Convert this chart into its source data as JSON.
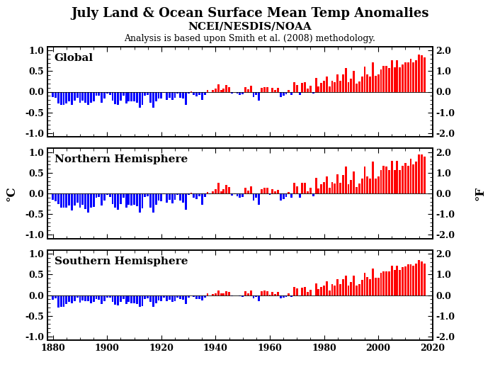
{
  "title_line1": "July Land & Ocean Surface Mean Temp Anomalies",
  "title_line2": "NCEI/NESDIS/NOAA",
  "title_line3": "Analysis is based upon Smith et al. (2008) methodology.",
  "ylabel_left": "°C",
  "ylabel_right": "°F",
  "panel_labels": [
    "Global",
    "Northern Hemisphere",
    "Southern Hemisphere"
  ],
  "years": [
    1880,
    1881,
    1882,
    1883,
    1884,
    1885,
    1886,
    1887,
    1888,
    1889,
    1890,
    1891,
    1892,
    1893,
    1894,
    1895,
    1896,
    1897,
    1898,
    1899,
    1900,
    1901,
    1902,
    1903,
    1904,
    1905,
    1906,
    1907,
    1908,
    1909,
    1910,
    1911,
    1912,
    1913,
    1914,
    1915,
    1916,
    1917,
    1918,
    1919,
    1920,
    1921,
    1922,
    1923,
    1924,
    1925,
    1926,
    1927,
    1928,
    1929,
    1930,
    1931,
    1932,
    1933,
    1934,
    1935,
    1936,
    1937,
    1938,
    1939,
    1940,
    1941,
    1942,
    1943,
    1944,
    1945,
    1946,
    1947,
    1948,
    1949,
    1950,
    1951,
    1952,
    1953,
    1954,
    1955,
    1956,
    1957,
    1958,
    1959,
    1960,
    1961,
    1962,
    1963,
    1964,
    1965,
    1966,
    1967,
    1968,
    1969,
    1970,
    1971,
    1972,
    1973,
    1974,
    1975,
    1976,
    1977,
    1978,
    1979,
    1980,
    1981,
    1982,
    1983,
    1984,
    1985,
    1986,
    1987,
    1988,
    1989,
    1990,
    1991,
    1992,
    1993,
    1994,
    1995,
    1996,
    1997,
    1998,
    1999,
    2000,
    2001,
    2002,
    2003,
    2004,
    2005,
    2006,
    2007,
    2008,
    2009,
    2010,
    2011,
    2012,
    2013,
    2014,
    2015,
    2016,
    2017
  ],
  "global": [
    -0.13,
    -0.14,
    -0.28,
    -0.31,
    -0.31,
    -0.28,
    -0.23,
    -0.31,
    -0.22,
    -0.14,
    -0.26,
    -0.21,
    -0.27,
    -0.31,
    -0.27,
    -0.24,
    -0.1,
    -0.09,
    -0.26,
    -0.16,
    -0.05,
    -0.07,
    -0.21,
    -0.3,
    -0.32,
    -0.21,
    -0.1,
    -0.28,
    -0.23,
    -0.24,
    -0.24,
    -0.26,
    -0.38,
    -0.32,
    -0.09,
    -0.07,
    -0.26,
    -0.38,
    -0.23,
    -0.16,
    -0.17,
    -0.03,
    -0.19,
    -0.14,
    -0.2,
    -0.15,
    -0.05,
    -0.14,
    -0.17,
    -0.31,
    -0.05,
    0.01,
    -0.08,
    -0.11,
    -0.08,
    -0.2,
    -0.07,
    0.04,
    -0.01,
    0.04,
    0.08,
    0.18,
    0.05,
    0.07,
    0.16,
    0.12,
    -0.04,
    -0.01,
    -0.04,
    -0.07,
    -0.06,
    0.12,
    0.06,
    0.14,
    -0.13,
    -0.08,
    -0.22,
    0.1,
    0.12,
    0.12,
    -0.01,
    0.1,
    0.05,
    0.09,
    -0.13,
    -0.1,
    -0.06,
    0.04,
    -0.07,
    0.23,
    0.17,
    -0.07,
    0.22,
    0.23,
    0.07,
    0.14,
    -0.04,
    0.34,
    0.13,
    0.21,
    0.26,
    0.37,
    0.13,
    0.27,
    0.24,
    0.43,
    0.26,
    0.42,
    0.57,
    0.23,
    0.32,
    0.51,
    0.2,
    0.25,
    0.37,
    0.61,
    0.43,
    0.37,
    0.72,
    0.39,
    0.43,
    0.55,
    0.63,
    0.62,
    0.57,
    0.76,
    0.59,
    0.76,
    0.59,
    0.67,
    0.72,
    0.71,
    0.8,
    0.71,
    0.77,
    0.9,
    0.88,
    0.83
  ],
  "northern": [
    -0.16,
    -0.19,
    -0.26,
    -0.34,
    -0.34,
    -0.35,
    -0.3,
    -0.42,
    -0.3,
    -0.22,
    -0.34,
    -0.28,
    -0.38,
    -0.47,
    -0.34,
    -0.32,
    -0.11,
    -0.08,
    -0.3,
    -0.17,
    -0.04,
    -0.08,
    -0.25,
    -0.35,
    -0.4,
    -0.26,
    -0.1,
    -0.35,
    -0.28,
    -0.29,
    -0.28,
    -0.31,
    -0.47,
    -0.37,
    -0.08,
    -0.07,
    -0.34,
    -0.47,
    -0.27,
    -0.18,
    -0.19,
    -0.01,
    -0.22,
    -0.16,
    -0.24,
    -0.16,
    -0.03,
    -0.18,
    -0.22,
    -0.39,
    -0.04,
    0.02,
    -0.11,
    -0.13,
    -0.07,
    -0.27,
    -0.08,
    0.04,
    -0.01,
    0.05,
    0.11,
    0.25,
    0.06,
    0.1,
    0.21,
    0.15,
    -0.06,
    -0.02,
    -0.07,
    -0.11,
    -0.08,
    0.13,
    0.07,
    0.17,
    -0.18,
    -0.11,
    -0.28,
    0.11,
    0.13,
    0.13,
    -0.03,
    0.11,
    0.06,
    0.09,
    -0.18,
    -0.14,
    -0.09,
    0.03,
    -0.1,
    0.26,
    0.18,
    -0.11,
    0.25,
    0.26,
    0.06,
    0.14,
    -0.07,
    0.38,
    0.12,
    0.22,
    0.27,
    0.41,
    0.13,
    0.28,
    0.24,
    0.47,
    0.25,
    0.45,
    0.65,
    0.22,
    0.33,
    0.54,
    0.16,
    0.24,
    0.37,
    0.66,
    0.42,
    0.36,
    0.78,
    0.36,
    0.42,
    0.56,
    0.67,
    0.65,
    0.57,
    0.8,
    0.57,
    0.8,
    0.57,
    0.67,
    0.74,
    0.68,
    0.84,
    0.7,
    0.78,
    0.95,
    0.94,
    0.9
  ],
  "southern": [
    -0.11,
    -0.08,
    -0.3,
    -0.28,
    -0.28,
    -0.21,
    -0.16,
    -0.19,
    -0.14,
    -0.06,
    -0.18,
    -0.13,
    -0.15,
    -0.15,
    -0.2,
    -0.17,
    -0.1,
    -0.11,
    -0.22,
    -0.14,
    -0.06,
    -0.06,
    -0.17,
    -0.24,
    -0.25,
    -0.16,
    -0.1,
    -0.21,
    -0.17,
    -0.19,
    -0.2,
    -0.21,
    -0.29,
    -0.27,
    -0.1,
    -0.08,
    -0.17,
    -0.29,
    -0.19,
    -0.13,
    -0.15,
    -0.06,
    -0.15,
    -0.12,
    -0.16,
    -0.14,
    -0.06,
    -0.1,
    -0.12,
    -0.22,
    -0.06,
    -0.01,
    -0.05,
    -0.09,
    -0.09,
    -0.13,
    -0.06,
    0.05,
    -0.01,
    0.03,
    0.05,
    0.11,
    0.04,
    0.04,
    0.1,
    0.08,
    -0.02,
    -0.01,
    -0.01,
    -0.03,
    -0.04,
    0.1,
    0.05,
    0.11,
    -0.07,
    -0.04,
    -0.15,
    0.09,
    0.12,
    0.1,
    0.01,
    0.08,
    0.03,
    0.08,
    -0.08,
    -0.06,
    -0.04,
    0.05,
    -0.04,
    0.2,
    0.16,
    -0.02,
    0.18,
    0.19,
    0.08,
    0.13,
    -0.01,
    0.29,
    0.14,
    0.2,
    0.24,
    0.33,
    0.12,
    0.26,
    0.24,
    0.38,
    0.27,
    0.38,
    0.48,
    0.24,
    0.31,
    0.47,
    0.24,
    0.26,
    0.37,
    0.55,
    0.44,
    0.38,
    0.65,
    0.42,
    0.43,
    0.54,
    0.58,
    0.58,
    0.57,
    0.71,
    0.61,
    0.72,
    0.61,
    0.68,
    0.7,
    0.75,
    0.75,
    0.72,
    0.76,
    0.85,
    0.82,
    0.76
  ],
  "xlim": [
    1878,
    2020
  ],
  "ylim_left": [
    -1.1,
    1.1
  ],
  "xticks": [
    1880,
    1900,
    1920,
    1940,
    1960,
    1980,
    2000,
    2020
  ],
  "yticks_left": [
    -1.0,
    -0.5,
    0.0,
    0.5,
    1.0
  ],
  "yticks_right": [
    -2.0,
    -1.0,
    0.0,
    1.0,
    2.0
  ],
  "color_positive": "#FF0000",
  "color_negative": "#0000FF",
  "background_color": "#FFFFFF",
  "title1_fontsize": 13,
  "title2_fontsize": 11,
  "title3_fontsize": 9,
  "tick_labelsize": 9,
  "panel_labelsize": 11,
  "bar_width": 0.75
}
